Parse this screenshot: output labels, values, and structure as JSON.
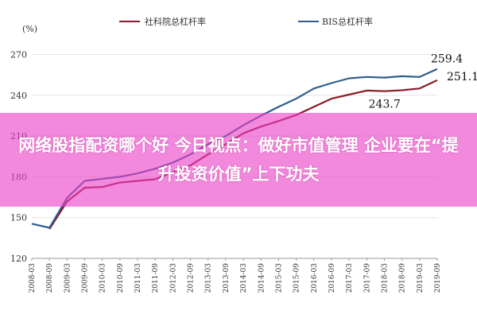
{
  "overlay": {
    "headline": "网络股指配资哪个好 今日视点：做好市值管理 企业要在“提升投资价值”上下功夫"
  },
  "chart_data": {
    "type": "line",
    "unit_label": "(%)",
    "yticks": [
      120,
      150,
      180,
      210,
      240,
      270
    ],
    "ylim": [
      120,
      275
    ],
    "x": [
      "2008-03",
      "2008-09",
      "2009-03",
      "2009-09",
      "2010-03",
      "2010-09",
      "2011-03",
      "2011-09",
      "2012-03",
      "2012-09",
      "2013-03",
      "2013-09",
      "2014-03",
      "2014-09",
      "2015-03",
      "2015-09",
      "2016-03",
      "2016-09",
      "2017-03",
      "2017-09",
      "2018-03",
      "2018-09",
      "2019-03",
      "2019-09"
    ],
    "xgrid": "none",
    "legend_position": "top",
    "series": [
      {
        "name": "社科院总杠杆率",
        "color": "#8b1c2a",
        "values": [
          null,
          141.6,
          161.8,
          172.0,
          172.5,
          175.8,
          177.0,
          178.2,
          183.5,
          188.5,
          196.5,
          204.0,
          212.0,
          217.0,
          221.0,
          225.5,
          231.5,
          237.5,
          240.5,
          243.5,
          243.0,
          243.7,
          245.0,
          251.1
        ]
      },
      {
        "name": "BIS总杠杆率",
        "color": "#2e5e8e",
        "values": [
          145.5,
          142.5,
          164.5,
          177.0,
          178.5,
          180.0,
          182.5,
          186.0,
          190.5,
          196.5,
          204.0,
          210.0,
          218.0,
          225.0,
          231.5,
          237.5,
          245.0,
          249.0,
          252.5,
          253.5,
          253.0,
          254.0,
          253.5,
          259.4
        ]
      }
    ],
    "annotations": [
      {
        "series": 1,
        "index": 23,
        "text": "259.4"
      },
      {
        "series": 0,
        "index": 23,
        "text": "251.1"
      },
      {
        "series": 0,
        "index": 21,
        "text": "243.7"
      }
    ]
  }
}
